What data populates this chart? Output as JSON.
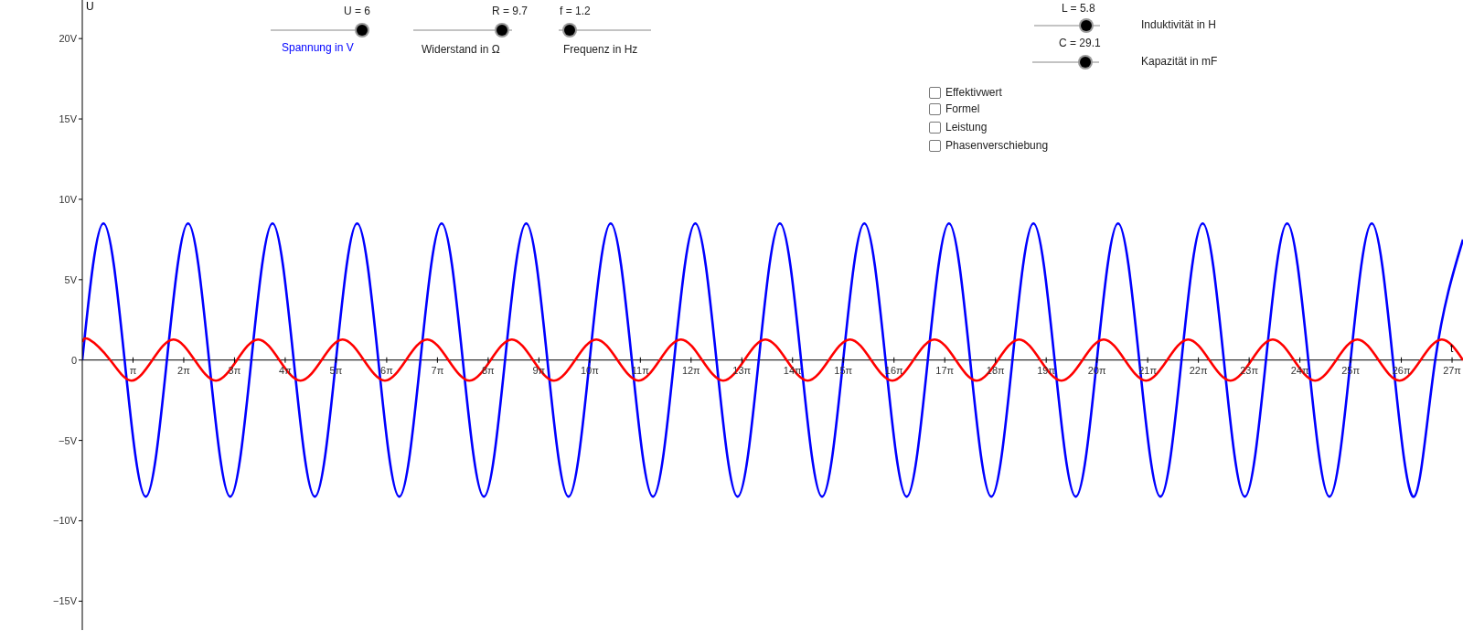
{
  "chart_data": {
    "type": "line",
    "xlabel": "t",
    "ylabel": "U",
    "xlim": [
      0,
      85.5
    ],
    "ylim": [
      -16.8,
      22.4
    ],
    "xticks": [
      {
        "value": 3.1416,
        "label": "π"
      },
      {
        "value": 6.2832,
        "label": "2π"
      },
      {
        "value": 9.4248,
        "label": "3π"
      },
      {
        "value": 12.5664,
        "label": "4π"
      },
      {
        "value": 15.708,
        "label": "5π"
      },
      {
        "value": 18.8496,
        "label": "6π"
      },
      {
        "value": 21.9911,
        "label": "7π"
      },
      {
        "value": 25.1327,
        "label": "8π"
      },
      {
        "value": 28.2743,
        "label": "9π"
      },
      {
        "value": 31.4159,
        "label": "10π"
      },
      {
        "value": 34.5575,
        "label": "11π"
      },
      {
        "value": 37.6991,
        "label": "12π"
      },
      {
        "value": 40.8407,
        "label": "13π"
      },
      {
        "value": 43.9823,
        "label": "14π"
      },
      {
        "value": 47.1239,
        "label": "15π"
      },
      {
        "value": 50.2655,
        "label": "16π"
      },
      {
        "value": 53.4071,
        "label": "17π"
      },
      {
        "value": 56.5487,
        "label": "18π"
      },
      {
        "value": 59.6903,
        "label": "19π"
      },
      {
        "value": 62.8319,
        "label": "20π"
      },
      {
        "value": 65.9734,
        "label": "21π"
      },
      {
        "value": 69.115,
        "label": "22π"
      },
      {
        "value": 72.2566,
        "label": "23π"
      },
      {
        "value": 75.3982,
        "label": "24π"
      },
      {
        "value": 78.5398,
        "label": "25π"
      },
      {
        "value": 81.6814,
        "label": "26π"
      },
      {
        "value": 84.823,
        "label": "27π"
      }
    ],
    "yticks": [
      {
        "value": -15,
        "label": "−15V"
      },
      {
        "value": -10,
        "label": "−10V"
      },
      {
        "value": -5,
        "label": "−5V"
      },
      0,
      {
        "value": 5,
        "label": "5V"
      },
      {
        "value": 10,
        "label": "10V"
      },
      {
        "value": 15,
        "label": "15V"
      },
      {
        "value": 20,
        "label": "20V"
      }
    ],
    "grid": false,
    "legend": false,
    "marker": "none",
    "line_style": "solid",
    "series": [
      {
        "color": "#0000ff",
        "x": [
          0,
          1.31,
          2.62,
          3.93,
          5.24,
          6.55,
          7.85,
          9.16,
          10.47,
          11.78,
          13.09,
          14.4,
          15.71,
          17.02,
          18.33,
          19.63,
          20.94,
          22.25,
          23.56,
          24.87,
          26.18,
          27.49,
          28.8,
          30.11,
          31.42,
          32.72,
          34.03,
          35.34,
          36.65,
          37.96,
          39.27,
          40.58,
          41.89,
          43.2,
          44.51,
          45.81,
          47.12,
          48.43,
          49.74,
          51.05,
          52.36,
          53.67,
          54.98,
          56.29,
          57.6,
          58.9,
          60.21,
          61.52,
          62.83,
          64.14,
          65.45,
          66.76,
          68.07,
          69.38,
          70.69,
          71.99,
          73.3,
          74.61,
          75.92,
          77.23,
          78.54,
          79.85,
          81.16,
          82.47,
          83.78,
          85.5
        ],
        "values": [
          0,
          8.5,
          0,
          -8.5,
          0,
          8.5,
          0,
          -8.5,
          0,
          8.5,
          0,
          -8.5,
          0,
          8.5,
          0,
          -8.5,
          0,
          8.5,
          0,
          -8.5,
          0,
          8.5,
          0,
          -8.5,
          0,
          8.5,
          0,
          -8.5,
          0,
          8.5,
          0,
          -8.5,
          0,
          8.5,
          0,
          -8.5,
          0,
          8.5,
          0,
          -8.5,
          0,
          8.5,
          0,
          -8.5,
          0,
          8.5,
          0,
          -8.5,
          0,
          8.5,
          0,
          -8.5,
          0,
          8.5,
          0,
          -8.5,
          0,
          8.5,
          0,
          -8.5,
          0,
          8.5,
          0,
          -8.5,
          0,
          7.5
        ]
      },
      {
        "color": "#ff0000",
        "x": [
          0,
          0.42,
          1.73,
          3.03,
          4.34,
          5.65,
          6.96,
          8.27,
          9.58,
          10.89,
          12.2,
          13.51,
          14.82,
          16.12,
          17.43,
          18.74,
          20.05,
          21.36,
          22.67,
          23.98,
          25.29,
          26.6,
          27.91,
          29.21,
          30.52,
          31.83,
          33.14,
          34.45,
          35.76,
          37.07,
          38.38,
          39.69,
          41.0,
          42.3,
          43.61,
          44.92,
          46.23,
          47.54,
          48.85,
          50.16,
          51.47,
          52.78,
          54.09,
          55.39,
          56.7,
          58.01,
          59.32,
          60.63,
          61.94,
          63.25,
          64.56,
          65.87,
          67.18,
          68.48,
          69.79,
          71.1,
          72.41,
          73.72,
          75.03,
          76.34,
          77.65,
          78.96,
          80.27,
          81.57,
          82.88,
          84.19,
          85.5
        ],
        "values": [
          1.12,
          1.28,
          0,
          -1.28,
          0,
          1.28,
          0,
          -1.28,
          0,
          1.28,
          0,
          -1.28,
          0,
          1.28,
          0,
          -1.28,
          0,
          1.28,
          0,
          -1.28,
          0,
          1.28,
          0,
          -1.28,
          0,
          1.28,
          0,
          -1.28,
          0,
          1.28,
          0,
          -1.28,
          0,
          1.28,
          0,
          -1.28,
          0,
          1.28,
          0,
          -1.28,
          0,
          1.28,
          0,
          -1.28,
          0,
          1.28,
          0,
          -1.28,
          0,
          1.28,
          0,
          -1.28,
          0,
          1.28,
          0,
          -1.28,
          0,
          1.28,
          0,
          -1.28,
          0,
          1.28,
          0,
          -1.28,
          0,
          1.28,
          0
        ]
      }
    ],
    "annotations": [
      "U = 6",
      "Spannung in V",
      "R = 9.7",
      "Widerstand in Ω",
      "f = 1.2",
      "Frequenz in Hz",
      "L = 5.8",
      "Induktivität in H",
      "C = 29.1",
      "Kapazität in mF",
      "Effektivwert",
      "Formel",
      "Leistung",
      "Phasenverschiebung"
    ]
  }
}
